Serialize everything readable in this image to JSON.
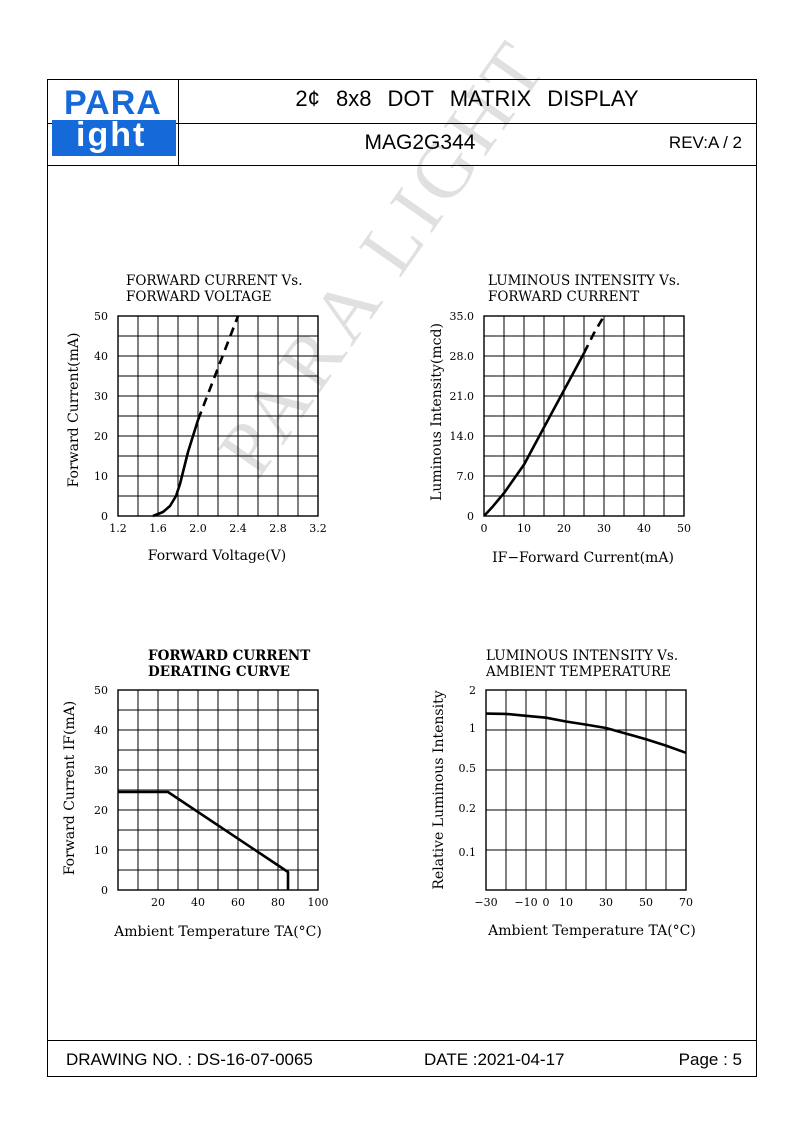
{
  "header": {
    "logo_top": "PARA",
    "logo_bottom": "ight",
    "title": "2¢ 8x8 DOT MATRIX DISPLAY",
    "model": "MAG2G344",
    "rev": "REV:A / 2"
  },
  "footer": {
    "drawing_no": "DRAWING NO. : DS-16-07-0065",
    "date": "DATE :2021-04-17",
    "page": "Page : 5"
  },
  "watermark": "PARA LIGHT",
  "chart_data": [
    {
      "type": "line",
      "title": "FORWARD CURRENT Vs.\nFORWARD VOLTAGE",
      "xlabel": "Forward Voltage(V)",
      "ylabel": "Forward Current(mA)",
      "xlim": [
        1.2,
        3.2
      ],
      "ylim": [
        0,
        50
      ],
      "x_ticks": [
        "1.2",
        "1.6",
        "2.0",
        "2.4",
        "2.8",
        "3.2"
      ],
      "y_ticks": [
        "0",
        "10",
        "20",
        "30",
        "40",
        "50"
      ],
      "grid": true,
      "series": [
        {
          "style": "solid",
          "x": [
            1.55,
            1.65,
            1.72,
            1.78,
            1.82,
            1.86,
            1.9,
            1.95,
            2.0
          ],
          "y": [
            0,
            1,
            2.5,
            5,
            8,
            12,
            16,
            20,
            24
          ]
        },
        {
          "style": "dashed",
          "x": [
            2.0,
            2.1,
            2.2,
            2.3,
            2.4
          ],
          "y": [
            24,
            30.5,
            37,
            43.5,
            50
          ]
        }
      ]
    },
    {
      "type": "line",
      "title": "LUMINOUS INTENSITY Vs.\nFORWARD CURRENT",
      "xlabel": "IF−Forward Current(mA)",
      "ylabel": "Luminous Intensity(mcd)",
      "xlim": [
        0,
        50
      ],
      "ylim": [
        0,
        35
      ],
      "x_ticks": [
        "0",
        "10",
        "20",
        "30",
        "40",
        "50"
      ],
      "y_ticks": [
        "0",
        "7.0",
        "14.0",
        "21.0",
        "28.0",
        "35.0"
      ],
      "grid": true,
      "series": [
        {
          "style": "solid",
          "x": [
            0,
            2,
            5,
            10,
            15,
            20,
            25
          ],
          "y": [
            0,
            1.5,
            4,
            9,
            15.5,
            22,
            28.5
          ]
        },
        {
          "style": "dashed",
          "x": [
            25,
            27.5,
            30
          ],
          "y": [
            28.5,
            32,
            35
          ]
        }
      ]
    },
    {
      "type": "line",
      "title": "FORWARD CURRENT\nDERATING CURVE",
      "xlabel": "Ambient Temperature TA(°C)",
      "ylabel": "Forward Current IF(mA)",
      "xlim": [
        0,
        100
      ],
      "ylim": [
        0,
        50
      ],
      "x_ticks": [
        "20",
        "40",
        "60",
        "80",
        "100"
      ],
      "y_ticks": [
        "0",
        "10",
        "20",
        "30",
        "40",
        "50"
      ],
      "grid": true,
      "series": [
        {
          "style": "solid",
          "x": [
            0,
            25,
            85,
            85
          ],
          "y": [
            24.5,
            24.5,
            4.5,
            0
          ]
        }
      ]
    },
    {
      "type": "line",
      "title": "LUMINOUS INTENSITY Vs.\nAMBIENT TEMPERATURE",
      "xlabel": "Ambient Temperature TA(°C)",
      "ylabel": "Relative Luminous Intensity",
      "xlim": [
        -30,
        70
      ],
      "ylim": [
        0,
        2
      ],
      "x_ticks": [
        "−30",
        "−10",
        "0",
        "10",
        "30",
        "50",
        "70"
      ],
      "y_ticks": [
        "0.1",
        "0.2",
        "0.5",
        "1",
        "2"
      ],
      "grid": true,
      "series": [
        {
          "style": "solid",
          "x": [
            -30,
            -20,
            -10,
            0,
            10,
            20,
            30,
            40,
            50,
            60,
            70
          ],
          "y": [
            1.38,
            1.37,
            1.32,
            1.27,
            1.17,
            1.09,
            1.0,
            0.93,
            0.86,
            0.78,
            0.69
          ]
        }
      ]
    }
  ]
}
